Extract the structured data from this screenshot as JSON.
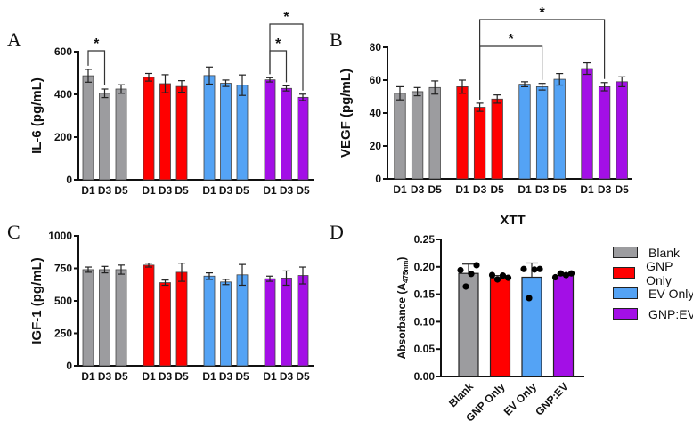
{
  "colors": {
    "Blank": "#9c9c9f",
    "GNP Only": "#ff0000",
    "EV Only": "#54a3f5",
    "GNP:EV": "#a30fe6"
  },
  "chart_data": [
    {
      "panel": "A",
      "type": "bar",
      "ylabel": "IL-6 (pg/mL)",
      "ylim": [
        0,
        600
      ],
      "yticks": [
        0,
        200,
        400,
        600
      ],
      "groups": [
        "Blank",
        "GNP Only",
        "EV Only",
        "GNP:EV"
      ],
      "categories": [
        "D1",
        "D3",
        "D5"
      ],
      "series": [
        {
          "name": "Blank",
          "values": [
            487,
            405,
            425
          ],
          "errors": [
            30,
            20,
            20
          ]
        },
        {
          "name": "GNP Only",
          "values": [
            480,
            450,
            437
          ],
          "errors": [
            18,
            42,
            27
          ]
        },
        {
          "name": "EV Only",
          "values": [
            488,
            452,
            443
          ],
          "errors": [
            40,
            15,
            48
          ]
        },
        {
          "name": "GNP:EV",
          "values": [
            468,
            428,
            386
          ],
          "errors": [
            10,
            12,
            15
          ]
        }
      ],
      "significance": [
        {
          "from": [
            0,
            0
          ],
          "to": [
            0,
            1
          ],
          "label": "*",
          "level": 0
        },
        {
          "from": [
            3,
            0
          ],
          "to": [
            3,
            1
          ],
          "label": "*",
          "level": 0
        },
        {
          "from": [
            3,
            0
          ],
          "to": [
            3,
            2
          ],
          "label": "*",
          "level": 1
        }
      ]
    },
    {
      "panel": "B",
      "type": "bar",
      "ylabel": "VEGF (pg/mL)",
      "ylim": [
        0,
        80
      ],
      "yticks": [
        0,
        20,
        40,
        60,
        80
      ],
      "groups": [
        "Blank",
        "GNP Only",
        "EV Only",
        "GNP:EV"
      ],
      "categories": [
        "D1",
        "D3",
        "D5"
      ],
      "series": [
        {
          "name": "Blank",
          "values": [
            52,
            53,
            55.5
          ],
          "errors": [
            4,
            2.5,
            4
          ]
        },
        {
          "name": "GNP Only",
          "values": [
            56,
            43.5,
            48.5
          ],
          "errors": [
            4,
            2.5,
            2.5
          ]
        },
        {
          "name": "EV Only",
          "values": [
            57.5,
            56,
            60.5
          ],
          "errors": [
            1.5,
            2,
            3.5
          ]
        },
        {
          "name": "GNP:EV",
          "values": [
            67,
            56,
            59
          ],
          "errors": [
            3.5,
            2.5,
            3
          ]
        }
      ],
      "significance": [
        {
          "from": [
            1,
            1
          ],
          "to": [
            2,
            1
          ],
          "label": "*",
          "level": 0
        },
        {
          "from": [
            1,
            1
          ],
          "to": [
            3,
            1
          ],
          "label": "*",
          "level": 1
        }
      ]
    },
    {
      "panel": "C",
      "type": "bar",
      "ylabel": "IGF-1 (pg/mL)",
      "ylim": [
        0,
        1000
      ],
      "yticks": [
        0,
        250,
        500,
        750,
        1000
      ],
      "groups": [
        "Blank",
        "GNP Only",
        "EV Only",
        "GNP:EV"
      ],
      "categories": [
        "D1",
        "D3",
        "D5"
      ],
      "series": [
        {
          "name": "Blank",
          "values": [
            740,
            740,
            740
          ],
          "errors": [
            20,
            25,
            35
          ]
        },
        {
          "name": "GNP Only",
          "values": [
            775,
            640,
            720
          ],
          "errors": [
            15,
            20,
            70
          ]
        },
        {
          "name": "EV Only",
          "values": [
            690,
            645,
            700
          ],
          "errors": [
            25,
            20,
            80
          ]
        },
        {
          "name": "GNP:EV",
          "values": [
            670,
            675,
            695
          ],
          "errors": [
            20,
            55,
            65
          ]
        }
      ],
      "significance": []
    },
    {
      "panel": "D",
      "type": "bar",
      "title": "XTT",
      "ylabel": "Absorbance (A",
      "ylabel_sub": "475nm",
      "ylabel_end": ")",
      "ylim": [
        0,
        0.25
      ],
      "yticks": [
        "0.00",
        "0.05",
        "0.10",
        "0.15",
        "0.20",
        "0.25"
      ],
      "categories": [
        "Blank",
        "GNP Only",
        "EV Only",
        "GNP:EV"
      ],
      "values": [
        0.188,
        0.18,
        0.181,
        0.184
      ],
      "errors": [
        0.017,
        0.004,
        0.026,
        0.004
      ],
      "points": [
        [
          0.194,
          0.164,
          0.187,
          0.203
        ],
        [
          0.185,
          0.177,
          0.184,
          0.18
        ],
        [
          0.196,
          0.143,
          0.195,
          0.196
        ],
        [
          0.181,
          0.188,
          0.185,
          0.188
        ]
      ],
      "legend": [
        "Blank",
        "GNP Only",
        "EV Only",
        "GNP:EV"
      ],
      "legend_position": "right"
    }
  ]
}
